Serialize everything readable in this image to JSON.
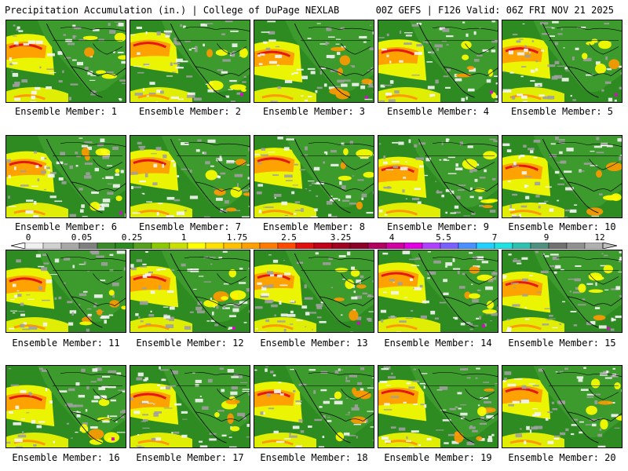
{
  "header": {
    "left": "Precipitation Accumulation (in.) | College of DuPage NEXLAB",
    "right": "00Z GEFS | F126 Valid: 06Z FRI NOV 21 2025"
  },
  "panels": [
    {
      "label": "Ensemble Member: 1"
    },
    {
      "label": "Ensemble Member: 2"
    },
    {
      "label": "Ensemble Member: 3"
    },
    {
      "label": "Ensemble Member: 4"
    },
    {
      "label": "Ensemble Member: 5"
    },
    {
      "label": "Ensemble Member: 6"
    },
    {
      "label": "Ensemble Member: 7"
    },
    {
      "label": "Ensemble Member: 8"
    },
    {
      "label": "Ensemble Member: 9"
    },
    {
      "label": "Ensemble Member: 10"
    },
    {
      "label": "Ensemble Member: 11"
    },
    {
      "label": "Ensemble Member: 12"
    },
    {
      "label": "Ensemble Member: 13"
    },
    {
      "label": "Ensemble Member: 14"
    },
    {
      "label": "Ensemble Member: 15"
    },
    {
      "label": "Ensemble Member: 16"
    },
    {
      "label": "Ensemble Member: 17"
    },
    {
      "label": "Ensemble Member: 18"
    },
    {
      "label": "Ensemble Member: 19"
    },
    {
      "label": "Ensemble Member: 20"
    }
  ],
  "colorbar": {
    "labels": [
      "0",
      "0.05",
      "0.25",
      "1",
      "1.75",
      "2.5",
      "3.25",
      "4",
      "5.5",
      "7",
      "9",
      "12"
    ],
    "colors": [
      "#f0f0f0",
      "#d0d0d0",
      "#a8a8a8",
      "#808080",
      "#3a8a2a",
      "#2e8b22",
      "#56a01e",
      "#8cc800",
      "#c8e000",
      "#ffff00",
      "#ffe000",
      "#ffc000",
      "#ffa000",
      "#ff7a00",
      "#ff4a00",
      "#e01010",
      "#c00018",
      "#a00020",
      "#8a0028",
      "#b00060",
      "#d000a0",
      "#e000e0",
      "#b040ff",
      "#7a60ff",
      "#4a90ff",
      "#20d0ff",
      "#20e0e0",
      "#30c0b0",
      "#509080",
      "#707070",
      "#909090",
      "#b0b0b0"
    ]
  },
  "colors": {
    "ocean_green": "#2e8b22",
    "land_green": "#3d9a2c",
    "yellow": "#ffff00",
    "orange": "#ff9900",
    "red": "#e51616",
    "magenta": "#d010c0",
    "grey": "#a0a0a0",
    "white": "#f5f5f5"
  }
}
